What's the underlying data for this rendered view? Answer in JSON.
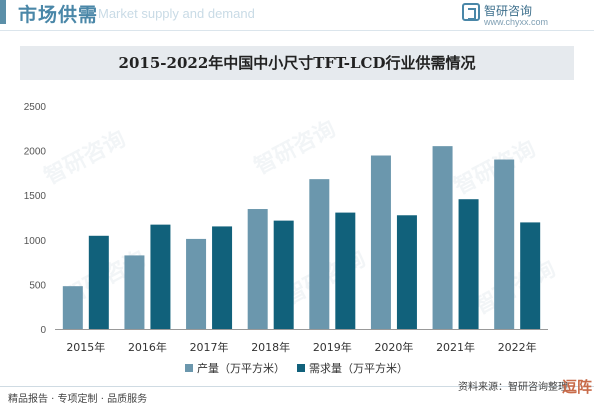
{
  "header": {
    "title": "市场供需",
    "subtitle": "Market supply and demand",
    "brand_name": "智研咨询",
    "brand_url": "www.chyxx.com"
  },
  "chart_data": {
    "type": "bar",
    "title": "2015-2022年中国中小尺寸TFT-LCD行业供需情况",
    "categories": [
      "2015年",
      "2016年",
      "2017年",
      "2018年",
      "2019年",
      "2020年",
      "2021年",
      "2022年"
    ],
    "series": [
      {
        "name": "产量（万平方米）",
        "color": "#6b97ad",
        "values": [
          480,
          825,
          1010,
          1345,
          1680,
          1945,
          2050,
          1900
        ]
      },
      {
        "name": "需求量（万平方米）",
        "color": "#11617b",
        "values": [
          1045,
          1170,
          1150,
          1215,
          1305,
          1275,
          1455,
          1195
        ]
      }
    ],
    "yticks": [
      "0",
      "500",
      "1000",
      "1500",
      "2000",
      "2500"
    ],
    "ylim": [
      0,
      2500
    ],
    "grid": false,
    "legend": "bottom"
  },
  "footer": {
    "left": "精品报告 · 专项定制 · 品质服务",
    "right": "资料来源：智研咨询整理",
    "corner": "逗阵"
  },
  "watermark": "智研咨询"
}
